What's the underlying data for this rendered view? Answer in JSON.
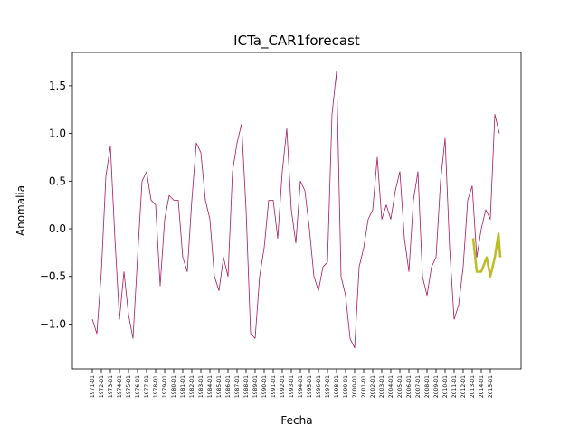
{
  "chart_data": {
    "type": "line",
    "title": "ICTa_CAR1forecast",
    "x_label": "Fecha",
    "y_label": "Anomalia",
    "xlim": [
      1968.8,
      2018.4
    ],
    "ylim": [
      -1.47,
      1.85
    ],
    "xticks": [
      {
        "value": 1971,
        "label": "1971-01"
      },
      {
        "value": 1972,
        "label": "1972-01"
      },
      {
        "value": 1973,
        "label": "1973-01"
      },
      {
        "value": 1974,
        "label": "1974-01"
      },
      {
        "value": 1975,
        "label": "1975-01"
      },
      {
        "value": 1976,
        "label": "1976-01"
      },
      {
        "value": 1977,
        "label": "1977-01"
      },
      {
        "value": 1978,
        "label": "1978-01"
      },
      {
        "value": 1979,
        "label": "1979-01"
      },
      {
        "value": 1980,
        "label": "1980-01"
      },
      {
        "value": 1981,
        "label": "1981-01"
      },
      {
        "value": 1982,
        "label": "1982-01"
      },
      {
        "value": 1983,
        "label": "1983-01"
      },
      {
        "value": 1984,
        "label": "1984-01"
      },
      {
        "value": 1985,
        "label": "1985-01"
      },
      {
        "value": 1986,
        "label": "1986-01"
      },
      {
        "value": 1987,
        "label": "1987-01"
      },
      {
        "value": 1988,
        "label": "1988-01"
      },
      {
        "value": 1989,
        "label": "1989-01"
      },
      {
        "value": 1990,
        "label": "1990-01"
      },
      {
        "value": 1991,
        "label": "1991-01"
      },
      {
        "value": 1992,
        "label": "1992-01"
      },
      {
        "value": 1993,
        "label": "1993-01"
      },
      {
        "value": 1994,
        "label": "1994-01"
      },
      {
        "value": 1995,
        "label": "1995-01"
      },
      {
        "value": 1996,
        "label": "1996-01"
      },
      {
        "value": 1997,
        "label": "1997-01"
      },
      {
        "value": 1998,
        "label": "1998-01"
      },
      {
        "value": 1999,
        "label": "1999-01"
      },
      {
        "value": 2000,
        "label": "2000-01"
      },
      {
        "value": 2001,
        "label": "2001-01"
      },
      {
        "value": 2002,
        "label": "2002-01"
      },
      {
        "value": 2003,
        "label": "2003-01"
      },
      {
        "value": 2004,
        "label": "2004-01"
      },
      {
        "value": 2005,
        "label": "2005-01"
      },
      {
        "value": 2006,
        "label": "2006-01"
      },
      {
        "value": 2007,
        "label": "2007-01"
      },
      {
        "value": 2008,
        "label": "2008-01"
      },
      {
        "value": 2009,
        "label": "2009-01"
      },
      {
        "value": 2010,
        "label": "2010-01"
      },
      {
        "value": 2011,
        "label": "2011-01"
      },
      {
        "value": 2012,
        "label": "2012-01"
      },
      {
        "value": 2013,
        "label": "2013-01"
      },
      {
        "value": 2014,
        "label": "2014-01"
      },
      {
        "value": 2015,
        "label": "2015-01"
      }
    ],
    "yticks": [
      {
        "value": -1.0,
        "label": "−1.0"
      },
      {
        "value": -0.5,
        "label": "−0.5"
      },
      {
        "value": 0.0,
        "label": "0.0"
      },
      0.5,
      {
        "value": 1.0,
        "label": "1.0"
      },
      1.5
    ],
    "series": [
      {
        "color": "#a8195e",
        "x": [
          1971,
          1971.5,
          1972,
          1972.5,
          1973,
          1973.5,
          1974,
          1974.5,
          1975,
          1975.5,
          1976,
          1976.5,
          1977,
          1977.5,
          1978,
          1978.5,
          1979,
          1979.5,
          1980,
          1980.5,
          1981,
          1981.5,
          1982,
          1982.5,
          1983,
          1983.5,
          1984,
          1984.5,
          1985,
          1985.5,
          1986,
          1986.5,
          1987,
          1987.5,
          1988,
          1988.5,
          1989,
          1989.5,
          1990,
          1990.5,
          1991,
          1991.5,
          1992,
          1992.5,
          1993,
          1993.5,
          1994,
          1994.5,
          1995,
          1995.5,
          1996,
          1996.5,
          1997,
          1997.5,
          1998,
          1998.5,
          1999,
          1999.5,
          2000,
          2000.5,
          2001,
          2001.5,
          2002,
          2002.5,
          2003,
          2003.5,
          2004,
          2004.5,
          2005,
          2005.5,
          2006,
          2006.5,
          2007,
          2007.5,
          2008,
          2008.5,
          2009,
          2009.5,
          2010,
          2010.5,
          2011,
          2011.5,
          2012,
          2012.5,
          2013,
          2013.5,
          2014,
          2014.5,
          2015,
          2015.5,
          2016
        ],
        "values": [
          -0.95,
          -1.1,
          -0.45,
          0.55,
          0.87,
          -0.1,
          -0.95,
          -0.45,
          -0.9,
          -1.15,
          -0.3,
          0.5,
          0.6,
          0.3,
          0.25,
          -0.6,
          0.1,
          0.35,
          0.3,
          0.3,
          -0.3,
          -0.45,
          0.3,
          0.9,
          0.8,
          0.3,
          0.1,
          -0.5,
          -0.65,
          -0.3,
          -0.5,
          0.6,
          0.9,
          1.1,
          0.2,
          -1.1,
          -1.15,
          -0.5,
          -0.2,
          0.3,
          0.3,
          -0.1,
          0.6,
          1.05,
          0.2,
          -0.15,
          0.5,
          0.4,
          0.0,
          -0.5,
          -0.65,
          -0.4,
          -0.35,
          1.2,
          1.65,
          -0.5,
          -0.7,
          -1.15,
          -1.25,
          -0.4,
          -0.2,
          0.1,
          0.2,
          0.75,
          0.1,
          0.25,
          0.1,
          0.4,
          0.6,
          -0.1,
          -0.45,
          0.3,
          0.6,
          -0.5,
          -0.7,
          -0.4,
          -0.3,
          0.5,
          0.95,
          -0.2,
          -0.95,
          -0.8,
          -0.4,
          0.3,
          0.45,
          -0.3,
          0.0,
          0.2,
          0.1,
          1.2,
          1.0
        ]
      },
      {
        "color": "#bcbd22",
        "x": [
          2013.1,
          2013.5,
          2014.0,
          2014.6,
          2015.0,
          2015.5,
          2015.9,
          2016.1
        ],
        "values": [
          -0.1,
          -0.45,
          -0.45,
          -0.3,
          -0.5,
          -0.3,
          -0.05,
          -0.3
        ]
      }
    ]
  }
}
